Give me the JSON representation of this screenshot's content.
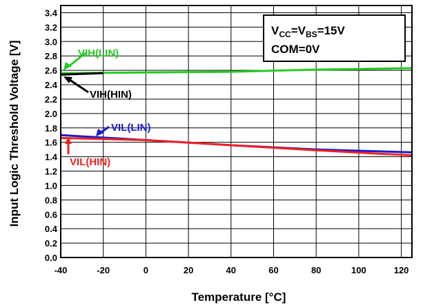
{
  "chart_data": {
    "type": "line",
    "xlabel": "Temperature [°C]",
    "ylabel": "Input Logic Threshold Voltage [V]",
    "xlim": [
      -40,
      125
    ],
    "ylim": [
      0,
      3.5
    ],
    "xticks": [
      -40,
      -20,
      0,
      20,
      40,
      60,
      80,
      100,
      120
    ],
    "xtick_labels": [
      "-40",
      "-20",
      "0",
      "20",
      "40",
      "60",
      "80",
      "100",
      "120"
    ],
    "yticks": [
      0,
      0.2,
      0.4,
      0.6,
      0.8,
      1.0,
      1.2,
      1.4,
      1.6,
      1.8,
      2.0,
      2.2,
      2.4,
      2.6,
      2.8,
      3.0,
      3.2,
      3.4
    ],
    "ytick_labels": [
      "0.0",
      "0.2",
      "0.4",
      "0.6",
      "0.8",
      "1.0",
      "1.2",
      "1.4",
      "1.6",
      "1.8",
      "2.0",
      "2.2",
      "2.4",
      "2.6",
      "2.8",
      "3.0",
      "3.2",
      "3.4"
    ],
    "grid": true,
    "series": [
      {
        "name": "VIH(LIN)",
        "color": "#22cc22",
        "x": [
          -40,
          0,
          40,
          80,
          125
        ],
        "y": [
          2.56,
          2.57,
          2.58,
          2.61,
          2.63
        ]
      },
      {
        "name": "VIH(HIN)",
        "color": "#000000",
        "x": [
          -40,
          -30,
          -20
        ],
        "y": [
          2.54,
          2.55,
          2.56
        ]
      },
      {
        "name": "VIL(LIN)",
        "color": "#1a1acc",
        "x": [
          -40,
          0,
          40,
          80,
          125
        ],
        "y": [
          1.7,
          1.63,
          1.56,
          1.5,
          1.46
        ]
      },
      {
        "name": "VIL(HIN)",
        "color": "#ee2222",
        "x": [
          -40,
          0,
          40,
          80,
          110,
          125
        ],
        "y": [
          1.66,
          1.63,
          1.56,
          1.49,
          1.44,
          1.42
        ]
      }
    ],
    "annotations": {
      "vih_lin": {
        "text": "VIH(LIN)",
        "color": "#22cc22"
      },
      "vih_hin": {
        "text": "VIH(HIN)",
        "color": "#000000"
      },
      "vil_lin": {
        "text": "VIL(LIN)",
        "color": "#1a1acc"
      },
      "vil_hin": {
        "text": "VIL(HIN)",
        "color": "#ee2222"
      }
    },
    "conditions": {
      "line1": {
        "v1": "V",
        "sub1": "CC",
        "eq": "=V",
        "sub2": "BS",
        "tail": "=15V"
      },
      "line2": "COM=0V"
    }
  }
}
